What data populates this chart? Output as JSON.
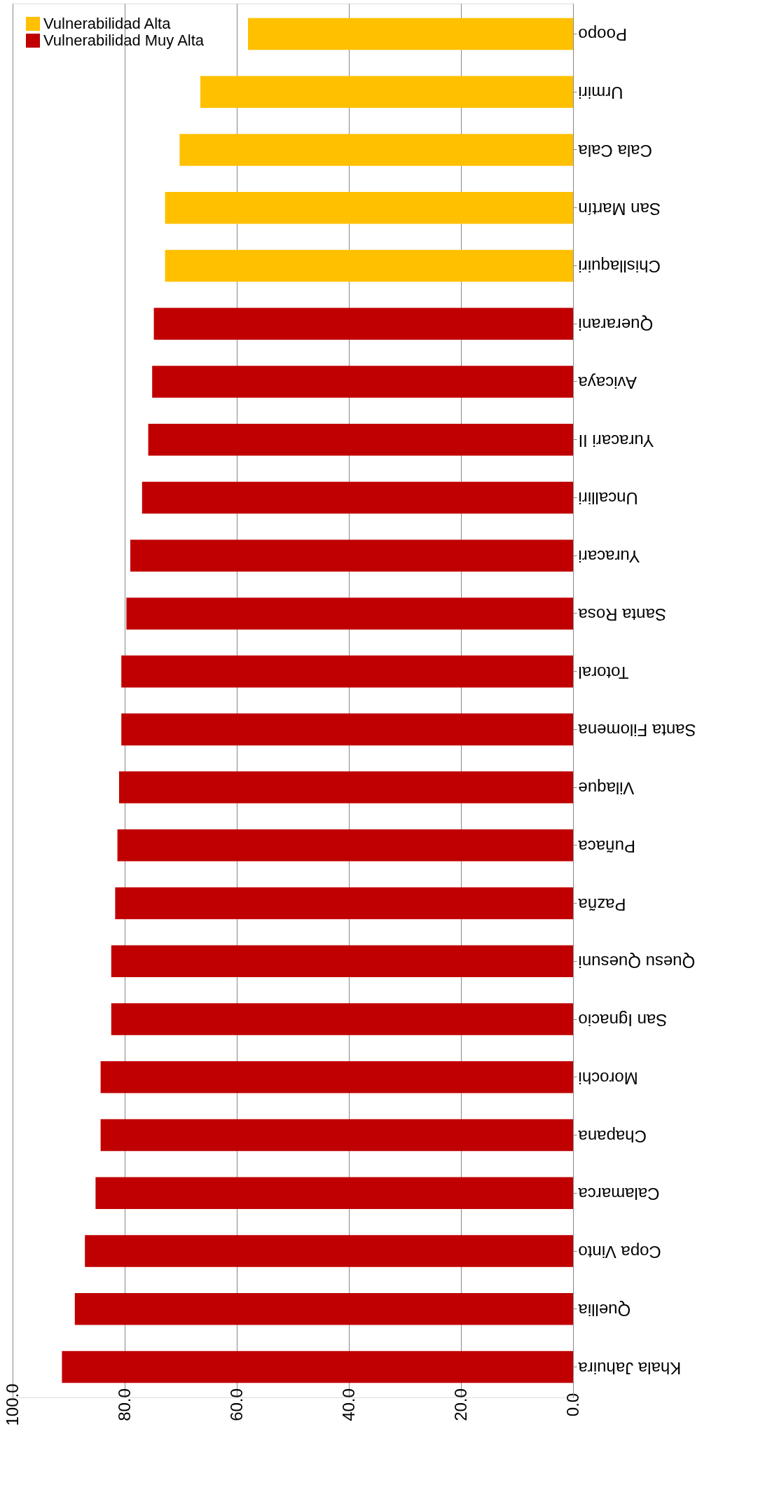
{
  "chart_data": {
    "type": "bar",
    "orientation": "horizontal",
    "categories": [
      "Poopo",
      "Urmiri",
      "Cala Cala",
      "San Martín",
      "Chisllaquiri",
      "Querarani",
      "Avicaya",
      "Yuracari II",
      "Uncalliri",
      "Yuracari",
      "Santa Rosa",
      "Totoral",
      "Santa Filomena",
      "Vilaque",
      "Puñaca",
      "Pazña",
      "Quesu Quesuni",
      "San Ignacio",
      "Morochi",
      "Chapana",
      "Calamarca",
      "Copa Vinto",
      "Quellia",
      "Khala Jahuira"
    ],
    "series": [
      {
        "name": "Vulnerabilidad Alta",
        "color": "#ffc000",
        "values": [
          58.0,
          66.5,
          70.2,
          72.8,
          72.8,
          null,
          null,
          null,
          null,
          null,
          null,
          null,
          null,
          null,
          null,
          null,
          null,
          null,
          null,
          null,
          null,
          null,
          null,
          null
        ]
      },
      {
        "name": "Vulnerabilidad  Muy Alta",
        "color": "#c00000",
        "values": [
          null,
          null,
          null,
          null,
          null,
          74.8,
          75.1,
          75.8,
          76.9,
          79.0,
          79.7,
          80.6,
          80.6,
          81.0,
          81.3,
          81.7,
          82.4,
          82.4,
          84.3,
          84.3,
          85.2,
          87.1,
          88.9,
          91.2
        ]
      }
    ],
    "xlim": [
      100,
      0
    ],
    "xticks": [
      {
        "value": 0,
        "label": "0.0"
      },
      {
        "value": 20,
        "label": "20.0"
      },
      {
        "value": 40,
        "label": "40.0"
      },
      {
        "value": 60,
        "label": "60.0"
      },
      {
        "value": 80,
        "label": "80.0"
      },
      {
        "value": 100,
        "label": "100.0"
      }
    ],
    "grid": "x",
    "legend": "top left"
  }
}
